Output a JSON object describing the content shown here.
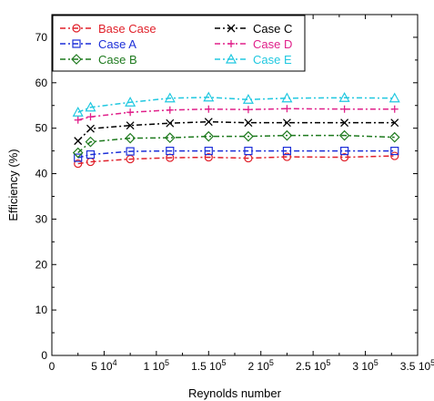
{
  "chart_data": {
    "type": "line",
    "title": "",
    "xlabel": "Reynolds number",
    "ylabel": "Efficiency (%)",
    "xlim": [
      0,
      350000
    ],
    "ylim": [
      0,
      75
    ],
    "x_ticks": [
      {
        "value": 0,
        "label": "0"
      },
      {
        "value": 50000,
        "label": "5 10",
        "exp": "4"
      },
      {
        "value": 100000,
        "label": "1 10",
        "exp": "5"
      },
      {
        "value": 150000,
        "label": "1.5 10",
        "exp": "5"
      },
      {
        "value": 200000,
        "label": "2 10",
        "exp": "5"
      },
      {
        "value": 250000,
        "label": "2.5 10",
        "exp": "5"
      },
      {
        "value": 300000,
        "label": "3 10",
        "exp": "5"
      },
      {
        "value": 350000,
        "label": "3.5 10",
        "exp": "5"
      }
    ],
    "y_ticks": [
      0,
      10,
      20,
      30,
      40,
      50,
      60,
      70
    ],
    "grid": false,
    "legend_position": "top-left",
    "x": [
      25000,
      37000,
      75000,
      113000,
      150000,
      188000,
      225000,
      280000,
      328000
    ],
    "series": [
      {
        "name": "Base Case",
        "color": "#e0202a",
        "marker": "circle",
        "dash": "6,3,2,3",
        "values": [
          42.2,
          42.6,
          43.2,
          43.5,
          43.6,
          43.4,
          43.7,
          43.6,
          43.9
        ]
      },
      {
        "name": "Case A",
        "color": "#1c2fd8",
        "marker": "square",
        "dash": "6,3,2,3",
        "values": [
          43.5,
          44.2,
          44.9,
          45.0,
          45.0,
          45.0,
          45.0,
          45.0,
          45.0
        ]
      },
      {
        "name": "Case B",
        "color": "#1e7a1e",
        "marker": "diamond",
        "dash": "6,3,2,3",
        "values": [
          44.6,
          47.0,
          47.8,
          47.9,
          48.2,
          48.2,
          48.4,
          48.4,
          48.0
        ]
      },
      {
        "name": "Case C",
        "color": "#000000",
        "marker": "x",
        "dash": "6,3,2,3",
        "values": [
          47.2,
          49.9,
          50.6,
          51.1,
          51.4,
          51.2,
          51.2,
          51.2,
          51.2
        ]
      },
      {
        "name": "Case D",
        "color": "#e0208a",
        "marker": "plus",
        "dash": "6,3,2,3",
        "values": [
          51.8,
          52.5,
          53.5,
          54.0,
          54.2,
          54.1,
          54.3,
          54.2,
          54.2
        ]
      },
      {
        "name": "Case E",
        "color": "#20c8e0",
        "marker": "triangle",
        "dash": "6,3,2,3",
        "values": [
          53.5,
          54.6,
          55.7,
          56.6,
          56.8,
          56.3,
          56.6,
          56.7,
          56.6
        ]
      }
    ]
  }
}
